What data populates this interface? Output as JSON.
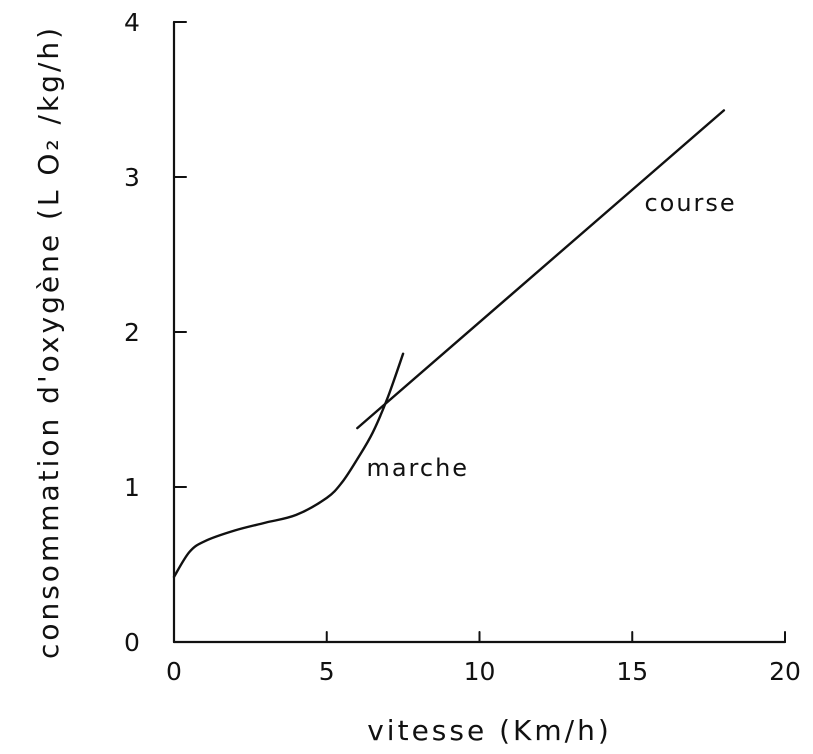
{
  "chart_data": {
    "type": "line",
    "title": "",
    "xlabel": "vitesse (Km/h)",
    "ylabel": "consommation d'oxygène (L O₂ /kg/h)",
    "xlim": [
      0,
      20
    ],
    "ylim": [
      0,
      4
    ],
    "x_ticks": [
      "0",
      "5",
      "10",
      "15",
      "20"
    ],
    "y_ticks": [
      "0",
      "1",
      "2",
      "3",
      "4"
    ],
    "grid": false,
    "series": [
      {
        "name": "marche",
        "x": [
          0,
          0.5,
          1,
          2,
          3,
          4,
          5,
          5.5,
          6,
          6.5,
          7,
          7.5
        ],
        "y": [
          0.42,
          0.58,
          0.65,
          0.72,
          0.77,
          0.82,
          0.93,
          1.03,
          1.18,
          1.35,
          1.58,
          1.86
        ]
      },
      {
        "name": "course",
        "x": [
          6,
          18
        ],
        "y": [
          1.38,
          3.43
        ]
      }
    ]
  }
}
